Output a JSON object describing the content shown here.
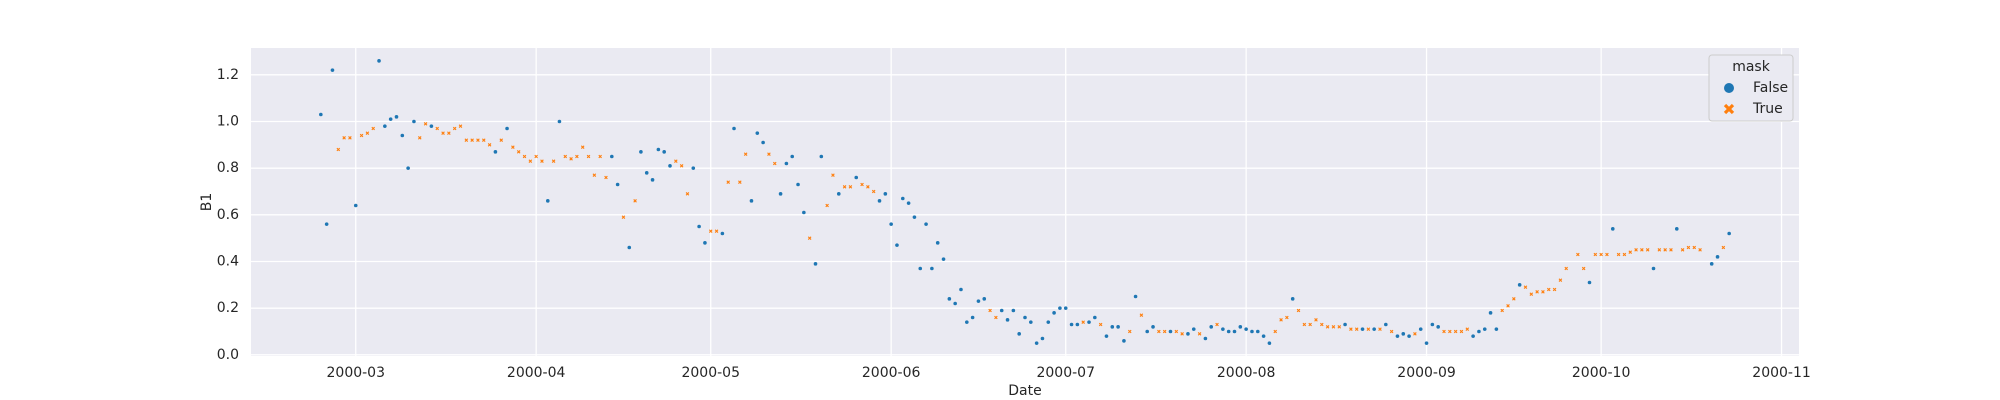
{
  "chart_data": {
    "type": "scatter",
    "x_label": "Date",
    "y_label": "B1",
    "legend_title": "mask",
    "legend": "upper right",
    "grid": true,
    "xlim": [
      "2000-02-12",
      "2000-11-04"
    ],
    "xticks": [
      {
        "value": "2000-03-01",
        "label": "2000-03"
      },
      {
        "value": "2000-04-01",
        "label": "2000-04"
      },
      {
        "value": "2000-05-01",
        "label": "2000-05"
      },
      {
        "value": "2000-06-01",
        "label": "2000-06"
      },
      {
        "value": "2000-07-01",
        "label": "2000-07"
      },
      {
        "value": "2000-08-01",
        "label": "2000-08"
      },
      {
        "value": "2000-09-01",
        "label": "2000-09"
      },
      {
        "value": "2000-10-01",
        "label": "2000-10"
      },
      {
        "value": "2000-11-01",
        "label": "2000-11"
      }
    ],
    "ylim": [
      -0.005,
      1.315
    ],
    "yticks": [
      {
        "value": 0,
        "label": "0.0"
      },
      0.2,
      0.4,
      0.6,
      0.8,
      {
        "value": 1,
        "label": "1.0"
      },
      1.2
    ],
    "series": [
      {
        "name": "False",
        "color": "#1f77b4",
        "marker": "circle",
        "x": [
          "2000-02-24",
          "2000-02-25",
          "2000-02-26",
          "2000-03-01",
          "2000-03-05",
          "2000-03-06",
          "2000-03-07",
          "2000-03-08",
          "2000-03-09",
          "2000-03-10",
          "2000-03-11",
          "2000-03-14",
          "2000-03-25",
          "2000-03-27",
          "2000-04-03",
          "2000-04-05",
          "2000-04-14",
          "2000-04-15",
          "2000-04-17",
          "2000-04-19",
          "2000-04-20",
          "2000-04-21",
          "2000-04-22",
          "2000-04-23",
          "2000-04-24",
          "2000-04-28",
          "2000-04-29",
          "2000-04-30",
          "2000-05-03",
          "2000-05-05",
          "2000-05-08",
          "2000-05-09",
          "2000-05-10",
          "2000-05-13",
          "2000-05-14",
          "2000-05-15",
          "2000-05-16",
          "2000-05-17",
          "2000-05-19",
          "2000-05-20",
          "2000-05-23",
          "2000-05-26",
          "2000-05-30",
          "2000-05-31",
          "2000-06-01",
          "2000-06-02",
          "2000-06-03",
          "2000-06-04",
          "2000-06-05",
          "2000-06-06",
          "2000-06-07",
          "2000-06-08",
          "2000-06-09",
          "2000-06-10",
          "2000-06-11",
          "2000-06-12",
          "2000-06-13",
          "2000-06-14",
          "2000-06-15",
          "2000-06-16",
          "2000-06-17",
          "2000-06-20",
          "2000-06-21",
          "2000-06-22",
          "2000-06-23",
          "2000-06-24",
          "2000-06-25",
          "2000-06-26",
          "2000-06-27",
          "2000-06-28",
          "2000-06-29",
          "2000-06-30",
          "2000-07-01",
          "2000-07-02",
          "2000-07-03",
          "2000-07-05",
          "2000-07-06",
          "2000-07-08",
          "2000-07-09",
          "2000-07-10",
          "2000-07-11",
          "2000-07-13",
          "2000-07-15",
          "2000-07-16",
          "2000-07-19",
          "2000-07-22",
          "2000-07-23",
          "2000-07-25",
          "2000-07-26",
          "2000-07-28",
          "2000-07-29",
          "2000-07-30",
          "2000-07-31",
          "2000-08-01",
          "2000-08-02",
          "2000-08-03",
          "2000-08-04",
          "2000-08-05",
          "2000-08-09",
          "2000-08-18",
          "2000-08-21",
          "2000-08-23",
          "2000-08-25",
          "2000-08-27",
          "2000-08-28",
          "2000-08-29",
          "2000-08-31",
          "2000-09-01",
          "2000-09-02",
          "2000-09-03",
          "2000-09-09",
          "2000-09-10",
          "2000-09-11",
          "2000-09-12",
          "2000-09-13",
          "2000-09-17",
          "2000-09-29",
          "2000-10-03",
          "2000-10-10",
          "2000-10-14",
          "2000-10-20",
          "2000-10-21",
          "2000-10-23"
        ],
        "values": [
          1.03,
          0.56,
          1.22,
          0.64,
          1.26,
          0.98,
          1.01,
          1.02,
          0.94,
          0.8,
          1.0,
          0.98,
          0.87,
          0.97,
          0.66,
          1.0,
          0.85,
          0.73,
          0.46,
          0.87,
          0.78,
          0.75,
          0.88,
          0.87,
          0.81,
          0.8,
          0.55,
          0.48,
          0.52,
          0.97,
          0.66,
          0.95,
          0.91,
          0.69,
          0.82,
          0.85,
          0.73,
          0.61,
          0.39,
          0.85,
          0.69,
          0.76,
          0.66,
          0.69,
          0.56,
          0.47,
          0.67,
          0.65,
          0.59,
          0.37,
          0.56,
          0.37,
          0.48,
          0.41,
          0.24,
          0.22,
          0.28,
          0.14,
          0.16,
          0.23,
          0.24,
          0.19,
          0.15,
          0.19,
          0.09,
          0.16,
          0.14,
          0.05,
          0.07,
          0.14,
          0.18,
          0.2,
          0.2,
          0.13,
          0.13,
          0.14,
          0.16,
          0.08,
          0.12,
          0.12,
          0.06,
          0.25,
          0.1,
          0.12,
          0.1,
          0.09,
          0.11,
          0.07,
          0.12,
          0.11,
          0.1,
          0.1,
          0.12,
          0.11,
          0.1,
          0.1,
          0.08,
          0.05,
          0.24,
          0.13,
          0.11,
          0.11,
          0.13,
          0.08,
          0.09,
          0.08,
          0.11,
          0.05,
          0.13,
          0.12,
          0.08,
          0.1,
          0.11,
          0.18,
          0.11,
          0.3,
          0.31,
          0.54,
          0.37,
          0.54,
          0.39,
          0.42,
          0.52
        ]
      },
      {
        "name": "True",
        "color": "#ff7f0e",
        "marker": "x",
        "x": [
          "2000-02-27",
          "2000-02-28",
          "2000-02-29",
          "2000-03-02",
          "2000-03-03",
          "2000-03-04",
          "2000-03-12",
          "2000-03-13",
          "2000-03-15",
          "2000-03-16",
          "2000-03-17",
          "2000-03-18",
          "2000-03-19",
          "2000-03-20",
          "2000-03-21",
          "2000-03-22",
          "2000-03-23",
          "2000-03-24",
          "2000-03-26",
          "2000-03-28",
          "2000-03-29",
          "2000-03-30",
          "2000-03-31",
          "2000-04-01",
          "2000-04-02",
          "2000-04-04",
          "2000-04-06",
          "2000-04-07",
          "2000-04-08",
          "2000-04-09",
          "2000-04-10",
          "2000-04-11",
          "2000-04-12",
          "2000-04-13",
          "2000-04-16",
          "2000-04-18",
          "2000-04-25",
          "2000-04-26",
          "2000-04-27",
          "2000-05-01",
          "2000-05-02",
          "2000-05-04",
          "2000-05-06",
          "2000-05-07",
          "2000-05-11",
          "2000-05-12",
          "2000-05-18",
          "2000-05-21",
          "2000-05-22",
          "2000-05-24",
          "2000-05-25",
          "2000-05-27",
          "2000-05-28",
          "2000-05-29",
          "2000-06-18",
          "2000-06-19",
          "2000-07-04",
          "2000-07-07",
          "2000-07-12",
          "2000-07-14",
          "2000-07-17",
          "2000-07-18",
          "2000-07-20",
          "2000-07-21",
          "2000-07-24",
          "2000-07-27",
          "2000-08-06",
          "2000-08-07",
          "2000-08-08",
          "2000-08-10",
          "2000-08-11",
          "2000-08-12",
          "2000-08-13",
          "2000-08-14",
          "2000-08-15",
          "2000-08-16",
          "2000-08-17",
          "2000-08-19",
          "2000-08-20",
          "2000-08-22",
          "2000-08-24",
          "2000-08-26",
          "2000-08-30",
          "2000-09-04",
          "2000-09-05",
          "2000-09-06",
          "2000-09-07",
          "2000-09-08",
          "2000-09-14",
          "2000-09-15",
          "2000-09-16",
          "2000-09-18",
          "2000-09-19",
          "2000-09-20",
          "2000-09-21",
          "2000-09-22",
          "2000-09-23",
          "2000-09-24",
          "2000-09-25",
          "2000-09-27",
          "2000-09-28",
          "2000-09-30",
          "2000-10-01",
          "2000-10-02",
          "2000-10-04",
          "2000-10-05",
          "2000-10-06",
          "2000-10-07",
          "2000-10-08",
          "2000-10-09",
          "2000-10-11",
          "2000-10-12",
          "2000-10-13",
          "2000-10-15",
          "2000-10-16",
          "2000-10-17",
          "2000-10-18",
          "2000-10-22"
        ],
        "values": [
          0.88,
          0.93,
          0.93,
          0.94,
          0.95,
          0.97,
          0.93,
          0.99,
          0.97,
          0.95,
          0.95,
          0.97,
          0.98,
          0.92,
          0.92,
          0.92,
          0.92,
          0.9,
          0.92,
          0.89,
          0.87,
          0.85,
          0.83,
          0.85,
          0.83,
          0.83,
          0.85,
          0.84,
          0.85,
          0.89,
          0.85,
          0.77,
          0.85,
          0.76,
          0.59,
          0.66,
          0.83,
          0.81,
          0.69,
          0.53,
          0.53,
          0.74,
          0.74,
          0.86,
          0.86,
          0.82,
          0.5,
          0.64,
          0.77,
          0.72,
          0.72,
          0.73,
          0.72,
          0.7,
          0.19,
          0.16,
          0.14,
          0.13,
          0.1,
          0.17,
          0.1,
          0.1,
          0.1,
          0.09,
          0.09,
          0.13,
          0.1,
          0.15,
          0.16,
          0.19,
          0.13,
          0.13,
          0.15,
          0.13,
          0.12,
          0.12,
          0.12,
          0.11,
          0.11,
          0.11,
          0.11,
          0.1,
          0.09,
          0.1,
          0.1,
          0.1,
          0.1,
          0.11,
          0.19,
          0.21,
          0.24,
          0.29,
          0.26,
          0.27,
          0.27,
          0.28,
          0.28,
          0.32,
          0.37,
          0.43,
          0.37,
          0.43,
          0.43,
          0.43,
          0.43,
          0.43,
          0.44,
          0.45,
          0.45,
          0.45,
          0.45,
          0.45,
          0.45,
          0.45,
          0.46,
          0.46,
          0.45,
          0.46
        ]
      }
    ]
  }
}
